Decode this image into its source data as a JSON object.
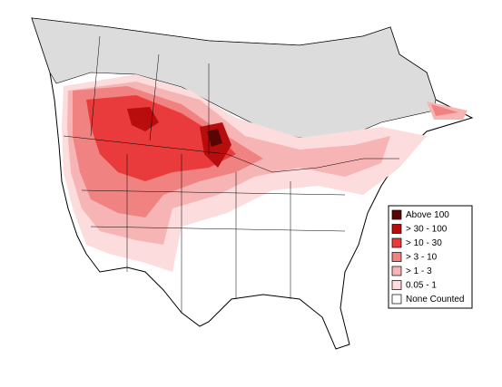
{
  "legend": {
    "items": [
      {
        "label": "Above 100",
        "color": "#5a0505"
      },
      {
        "label": "> 30 - 100",
        "color": "#b80d0d"
      },
      {
        "label": "> 10 - 30",
        "color": "#e93b3b"
      },
      {
        "label": "> 3 - 10",
        "color": "#f18282"
      },
      {
        "label": "> 1 - 3",
        "color": "#f7b4b4"
      },
      {
        "label": "0.05 - 1",
        "color": "#fcdcdc"
      },
      {
        "label": "None Counted",
        "color": "#ffffff"
      }
    ]
  }
}
